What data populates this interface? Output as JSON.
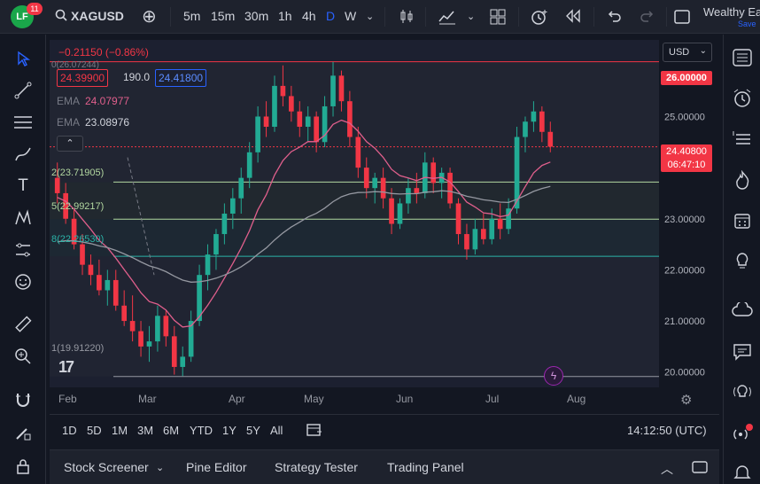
{
  "topbar": {
    "logo_text": "LF",
    "notification_count": "11",
    "symbol": "XAGUSD",
    "intervals": [
      "5m",
      "15m",
      "30m",
      "1h",
      "4h",
      "D",
      "W"
    ],
    "active_interval": "D",
    "account_name": "Wealthy Ea",
    "account_sub": "Save"
  },
  "legend": {
    "change": "−0.21150 (−0.86%)",
    "bid": "24.39900",
    "spread": "190.0",
    "ask": "24.41800",
    "ema1_label": "EMA",
    "ema1_value": "24.07977",
    "ema2_label": "EMA",
    "ema2_value": "23.08976",
    "fib_top": "0(26.07244)",
    "fib_2": "2(23.71905)",
    "fib_5": "5(22.99217)",
    "fib_8": "8(22.26530)",
    "fib_1": "1(19.91220)"
  },
  "price_axis": {
    "currency": "USD",
    "ticks": [
      "25.00000",
      "24.00000",
      "23.00000",
      "22.00000",
      "21.00000",
      "20.00000"
    ],
    "tag_high": "26.00000",
    "tag_current": "24.40800",
    "tag_countdown": "06:47:10"
  },
  "time_axis": {
    "months": [
      "Feb",
      "Mar",
      "Apr",
      "May",
      "Jun",
      "Jul",
      "Aug"
    ]
  },
  "range_bar": {
    "ranges": [
      "1D",
      "5D",
      "1M",
      "3M",
      "6M",
      "YTD",
      "1Y",
      "5Y",
      "All"
    ],
    "clock": "14:12:50 (UTC)"
  },
  "bottom_panel": {
    "tabs": [
      "Stock Screener",
      "Pine Editor",
      "Strategy Tester",
      "Trading Panel"
    ]
  },
  "colors": {
    "up": "#22ab94",
    "down": "#f23645",
    "ema_fast": "#e05f8c",
    "ema_slow": "#9598a1",
    "accent": "#2962ff"
  },
  "chart_data": {
    "type": "candlestick",
    "symbol": "XAGUSD",
    "timeframe": "D",
    "ylim": [
      19.7,
      26.5
    ],
    "x": [
      "Feb",
      "Mar",
      "Apr",
      "May",
      "Jun",
      "Jul",
      "Aug"
    ],
    "last_price": 24.408,
    "fib_levels": [
      26.07244,
      23.71905,
      22.99217,
      22.2653,
      19.9122
    ],
    "ema_fast_last": 24.07977,
    "ema_slow_last": 23.08976,
    "candles": [
      {
        "o": 23.8,
        "h": 24.1,
        "l": 23.3,
        "c": 23.5
      },
      {
        "o": 23.5,
        "h": 23.7,
        "l": 22.9,
        "c": 23.0
      },
      {
        "o": 23.0,
        "h": 23.2,
        "l": 22.4,
        "c": 22.5
      },
      {
        "o": 22.5,
        "h": 22.7,
        "l": 21.9,
        "c": 22.1
      },
      {
        "o": 22.1,
        "h": 22.3,
        "l": 21.7,
        "c": 21.9
      },
      {
        "o": 21.9,
        "h": 22.2,
        "l": 21.5,
        "c": 21.6
      },
      {
        "o": 21.6,
        "h": 22.0,
        "l": 21.3,
        "c": 21.8
      },
      {
        "o": 21.8,
        "h": 22.0,
        "l": 21.2,
        "c": 21.3
      },
      {
        "o": 21.3,
        "h": 21.6,
        "l": 20.9,
        "c": 21.0
      },
      {
        "o": 21.0,
        "h": 21.5,
        "l": 20.6,
        "c": 20.8
      },
      {
        "o": 20.8,
        "h": 21.0,
        "l": 20.3,
        "c": 20.5
      },
      {
        "o": 20.5,
        "h": 20.9,
        "l": 20.2,
        "c": 20.6
      },
      {
        "o": 20.6,
        "h": 21.3,
        "l": 20.4,
        "c": 21.1
      },
      {
        "o": 21.1,
        "h": 21.2,
        "l": 20.5,
        "c": 20.7
      },
      {
        "o": 20.7,
        "h": 20.9,
        "l": 19.95,
        "c": 20.1
      },
      {
        "o": 20.1,
        "h": 20.5,
        "l": 19.92,
        "c": 20.3
      },
      {
        "o": 20.3,
        "h": 21.2,
        "l": 20.2,
        "c": 21.0
      },
      {
        "o": 21.0,
        "h": 22.1,
        "l": 20.9,
        "c": 21.9
      },
      {
        "o": 21.9,
        "h": 22.5,
        "l": 21.6,
        "c": 22.3
      },
      {
        "o": 22.3,
        "h": 22.8,
        "l": 22.0,
        "c": 22.7
      },
      {
        "o": 22.7,
        "h": 23.3,
        "l": 22.5,
        "c": 23.1
      },
      {
        "o": 23.1,
        "h": 23.6,
        "l": 22.8,
        "c": 23.4
      },
      {
        "o": 23.4,
        "h": 24.0,
        "l": 23.1,
        "c": 23.8
      },
      {
        "o": 23.8,
        "h": 24.5,
        "l": 23.6,
        "c": 24.3
      },
      {
        "o": 24.3,
        "h": 25.2,
        "l": 24.1,
        "c": 25.0
      },
      {
        "o": 25.0,
        "h": 25.3,
        "l": 24.6,
        "c": 24.8
      },
      {
        "o": 24.8,
        "h": 25.8,
        "l": 24.7,
        "c": 25.6
      },
      {
        "o": 25.6,
        "h": 26.0,
        "l": 25.2,
        "c": 25.4
      },
      {
        "o": 25.4,
        "h": 25.6,
        "l": 24.9,
        "c": 25.1
      },
      {
        "o": 25.1,
        "h": 25.3,
        "l": 24.6,
        "c": 24.8
      },
      {
        "o": 24.8,
        "h": 25.2,
        "l": 24.5,
        "c": 25.0
      },
      {
        "o": 25.0,
        "h": 25.1,
        "l": 24.3,
        "c": 24.5
      },
      {
        "o": 24.5,
        "h": 25.4,
        "l": 24.4,
        "c": 25.2
      },
      {
        "o": 25.2,
        "h": 26.07,
        "l": 25.0,
        "c": 25.8
      },
      {
        "o": 25.8,
        "h": 25.9,
        "l": 25.1,
        "c": 25.3
      },
      {
        "o": 25.3,
        "h": 25.5,
        "l": 24.4,
        "c": 24.6
      },
      {
        "o": 24.6,
        "h": 24.8,
        "l": 23.8,
        "c": 24.0
      },
      {
        "o": 24.0,
        "h": 24.2,
        "l": 23.4,
        "c": 23.6
      },
      {
        "o": 23.6,
        "h": 23.9,
        "l": 23.3,
        "c": 23.8
      },
      {
        "o": 23.8,
        "h": 24.0,
        "l": 23.2,
        "c": 23.4
      },
      {
        "o": 23.4,
        "h": 23.6,
        "l": 22.7,
        "c": 22.9
      },
      {
        "o": 22.9,
        "h": 23.4,
        "l": 22.8,
        "c": 23.3
      },
      {
        "o": 23.3,
        "h": 23.8,
        "l": 23.1,
        "c": 23.6
      },
      {
        "o": 23.6,
        "h": 23.9,
        "l": 23.3,
        "c": 23.5
      },
      {
        "o": 23.5,
        "h": 24.3,
        "l": 23.4,
        "c": 24.1
      },
      {
        "o": 24.1,
        "h": 24.2,
        "l": 23.5,
        "c": 23.7
      },
      {
        "o": 23.7,
        "h": 24.0,
        "l": 23.4,
        "c": 23.9
      },
      {
        "o": 23.9,
        "h": 24.0,
        "l": 23.2,
        "c": 23.3
      },
      {
        "o": 23.3,
        "h": 23.4,
        "l": 22.5,
        "c": 22.7
      },
      {
        "o": 22.7,
        "h": 22.9,
        "l": 22.2,
        "c": 22.4
      },
      {
        "o": 22.4,
        "h": 23.0,
        "l": 22.3,
        "c": 22.8
      },
      {
        "o": 22.8,
        "h": 23.1,
        "l": 22.5,
        "c": 22.6
      },
      {
        "o": 22.6,
        "h": 23.2,
        "l": 22.5,
        "c": 23.0
      },
      {
        "o": 23.0,
        "h": 23.3,
        "l": 22.6,
        "c": 22.8
      },
      {
        "o": 22.8,
        "h": 23.4,
        "l": 22.7,
        "c": 23.2
      },
      {
        "o": 23.2,
        "h": 24.8,
        "l": 23.1,
        "c": 24.6
      },
      {
        "o": 24.6,
        "h": 25.0,
        "l": 24.3,
        "c": 24.9
      },
      {
        "o": 24.9,
        "h": 25.3,
        "l": 24.7,
        "c": 25.1
      },
      {
        "o": 25.1,
        "h": 25.2,
        "l": 24.5,
        "c": 24.7
      },
      {
        "o": 24.7,
        "h": 24.9,
        "l": 24.3,
        "c": 24.41
      }
    ]
  }
}
